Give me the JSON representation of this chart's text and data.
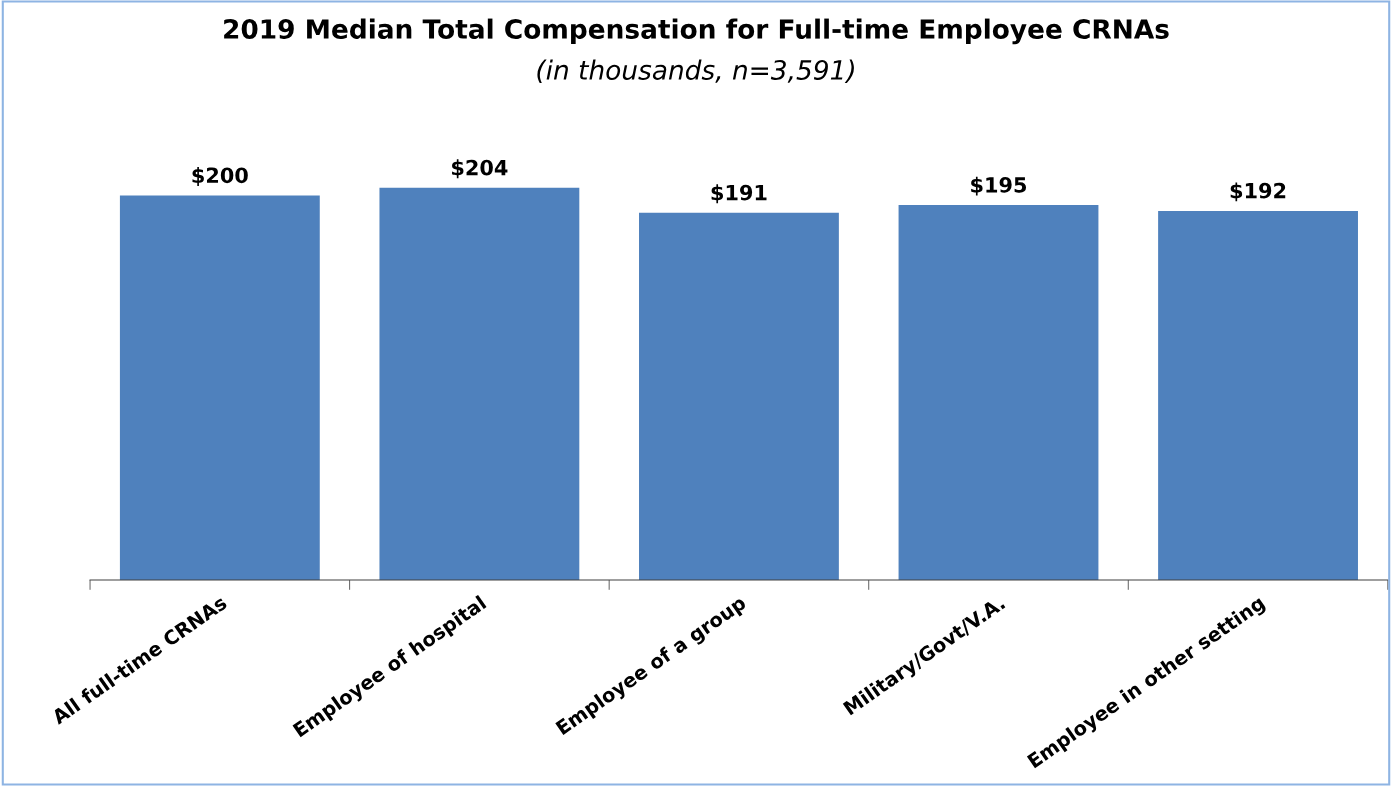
{
  "chart_data": {
    "type": "bar",
    "title": "2019 Median Total Compensation for Full-time Employee CRNAs",
    "subtitle": "(in thousands, n=3,591)",
    "categories": [
      "All full-time CRNAs",
      "Employee of hospital",
      "Employee of a group",
      "Military/Govt/V.A.",
      "Employee in other setting"
    ],
    "values": [
      200,
      204,
      191,
      195,
      192
    ],
    "value_labels": [
      "$200",
      "$204",
      "$191",
      "$195",
      "$192"
    ],
    "color": "#4f81bd",
    "tick_labels": "x",
    "grid": false,
    "legend": false
  }
}
